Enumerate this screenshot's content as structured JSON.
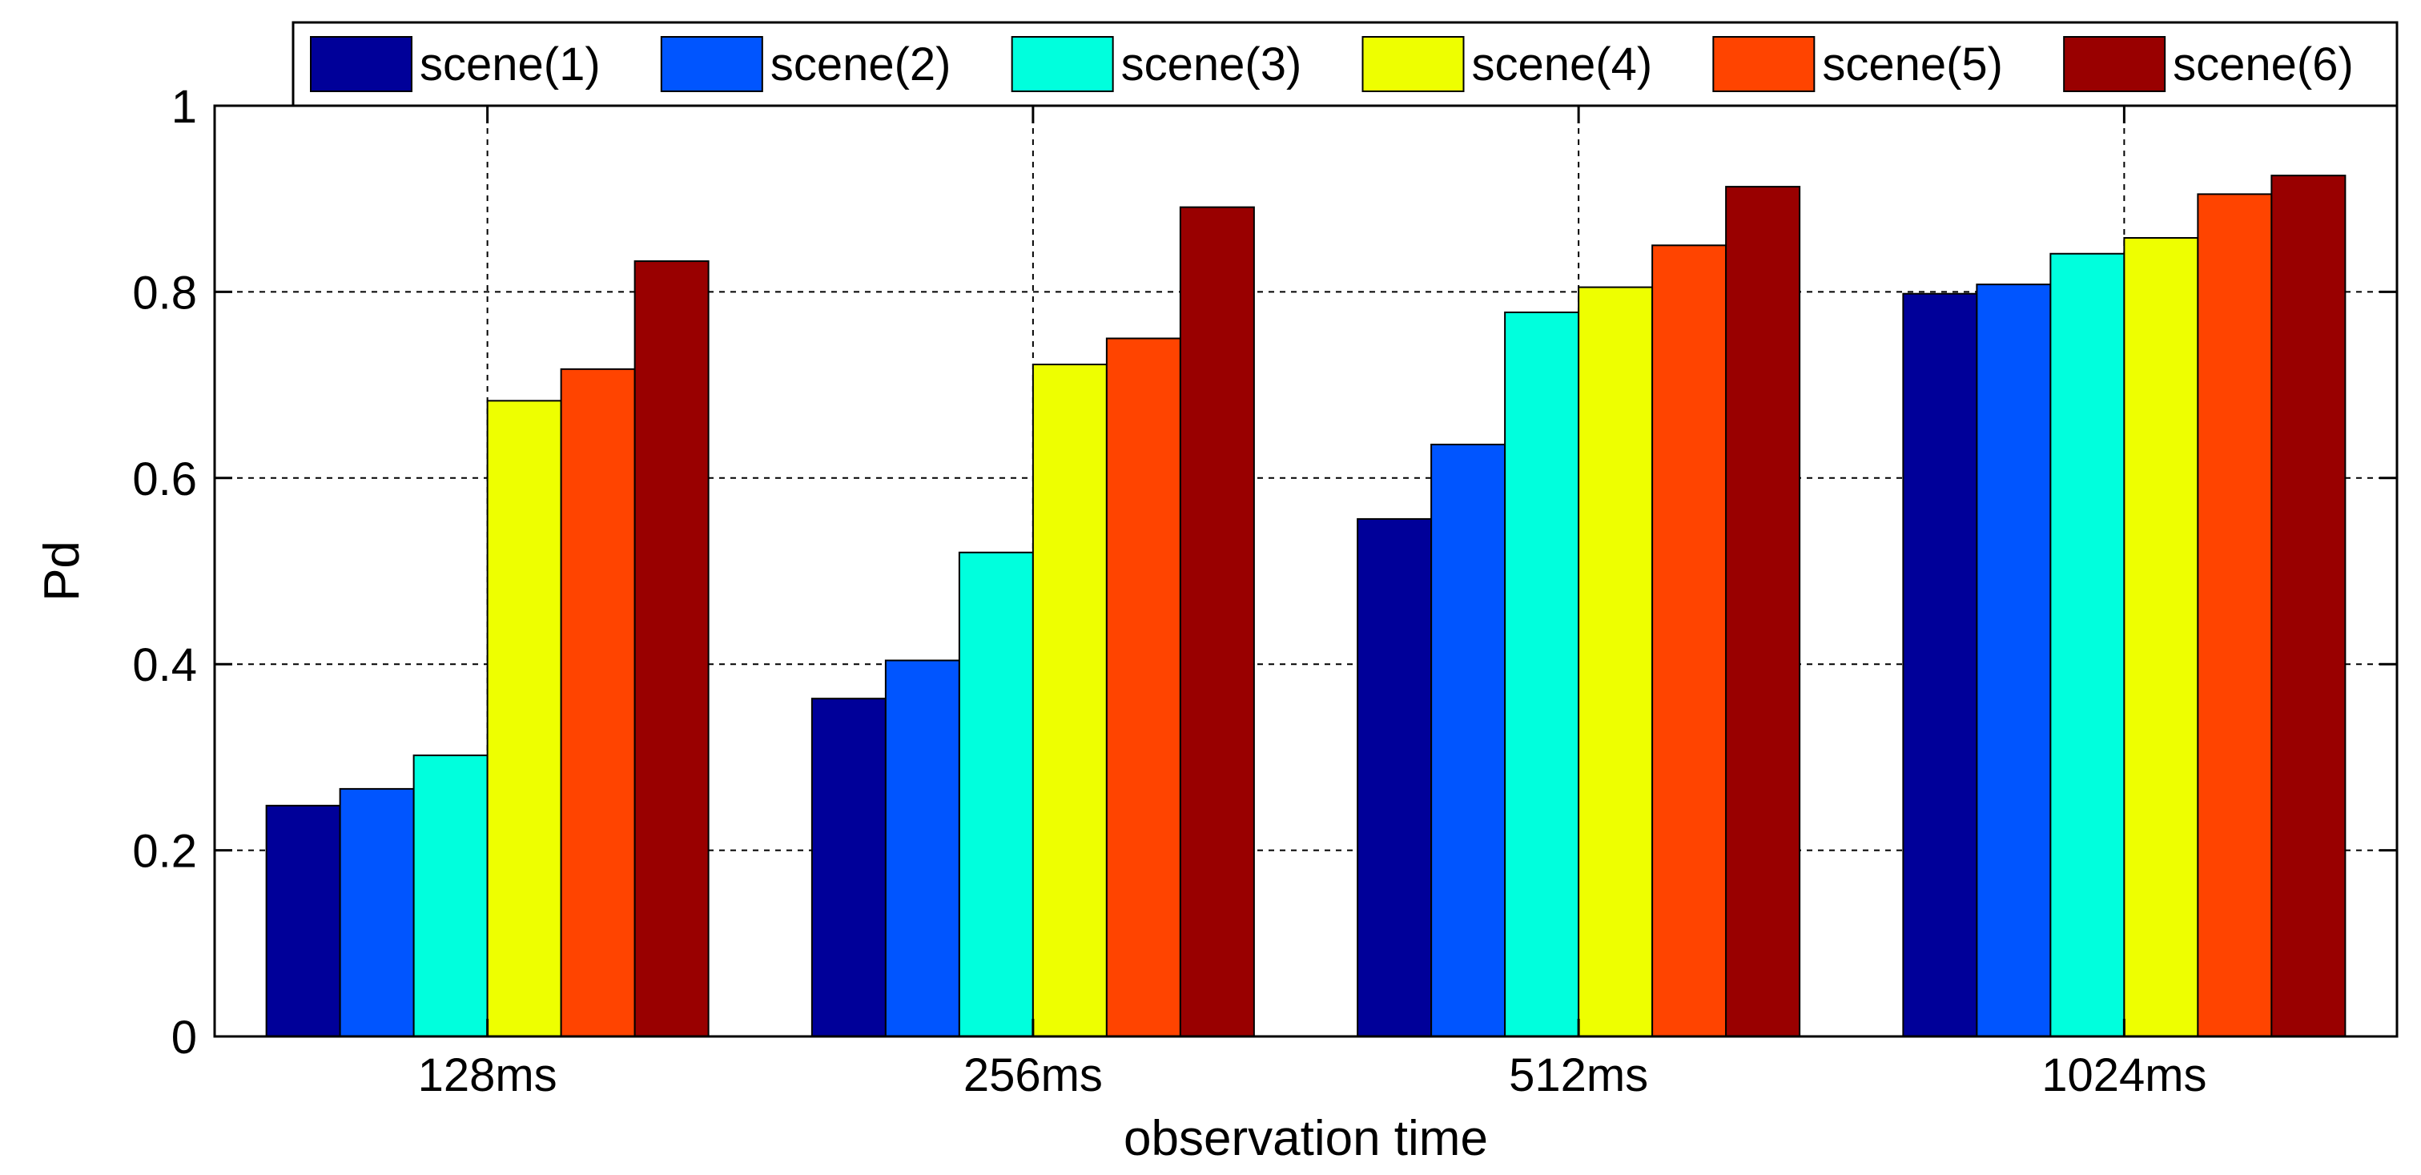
{
  "chart_data": {
    "type": "bar",
    "title": "",
    "xlabel": "observation time",
    "ylabel": "Pd",
    "ylim": [
      0,
      1
    ],
    "yticks": [
      0,
      0.2,
      0.4,
      0.6,
      0.8,
      1
    ],
    "ytick_labels": [
      "0",
      "0.2",
      "0.4",
      "0.6",
      "0.8",
      "1"
    ],
    "grid": true,
    "legend_position": "top-right",
    "categories": [
      "128ms",
      "256ms",
      "512ms",
      "1024ms"
    ],
    "series": [
      {
        "name": "scene(1)",
        "color": "#000099",
        "values": [
          0.248,
          0.363,
          0.556,
          0.798
        ]
      },
      {
        "name": "scene(2)",
        "color": "#0055FF",
        "values": [
          0.266,
          0.404,
          0.636,
          0.808
        ]
      },
      {
        "name": "scene(3)",
        "color": "#00FFDD",
        "values": [
          0.302,
          0.52,
          0.778,
          0.841
        ]
      },
      {
        "name": "scene(4)",
        "color": "#EEFF00",
        "values": [
          0.683,
          0.722,
          0.805,
          0.858
        ]
      },
      {
        "name": "scene(5)",
        "color": "#FF4400",
        "values": [
          0.717,
          0.75,
          0.85,
          0.905
        ]
      },
      {
        "name": "scene(6)",
        "color": "#990000",
        "values": [
          0.833,
          0.891,
          0.913,
          0.925
        ]
      }
    ]
  }
}
